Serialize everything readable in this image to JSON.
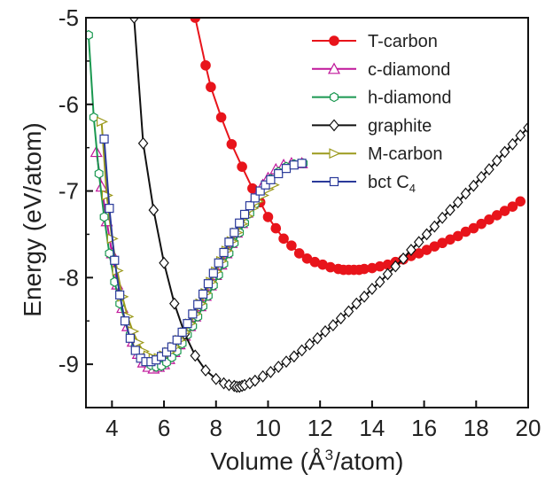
{
  "chart_data": {
    "type": "line",
    "xlabel_prefix": "Volume (Å",
    "xlabel_sup": "3",
    "xlabel_suffix": "/atom)",
    "ylabel": "Energy  (eV/atom)",
    "xlim": [
      3,
      20
    ],
    "ylim": [
      -9.5,
      -5
    ],
    "xticks": [
      4,
      6,
      8,
      10,
      12,
      14,
      16,
      18,
      20
    ],
    "yticks": [
      -9,
      -8,
      -7,
      -6,
      -5
    ],
    "grid": false,
    "legend_placement": "top-right",
    "series": [
      {
        "name": "T-carbon",
        "color": "#e8141b",
        "marker": "circle-filled",
        "x": [
          7.2,
          7.6,
          7.8,
          8.2,
          8.6,
          9.0,
          9.4,
          9.7,
          10.0,
          10.3,
          10.6,
          10.9,
          11.2,
          11.5,
          11.8,
          12.1,
          12.4,
          12.7,
          12.9,
          13.1,
          13.3,
          13.5,
          13.7,
          14.0,
          14.3,
          14.6,
          14.9,
          15.2,
          15.5,
          15.8,
          16.1,
          16.4,
          16.7,
          17.0,
          17.3,
          17.6,
          17.9,
          18.2,
          18.5,
          18.8,
          19.1,
          19.4,
          19.7
        ],
        "y": [
          -5.0,
          -5.55,
          -5.8,
          -6.15,
          -6.46,
          -6.72,
          -6.97,
          -7.13,
          -7.3,
          -7.43,
          -7.55,
          -7.63,
          -7.72,
          -7.78,
          -7.82,
          -7.85,
          -7.88,
          -7.9,
          -7.91,
          -7.91,
          -7.91,
          -7.91,
          -7.9,
          -7.89,
          -7.87,
          -7.85,
          -7.82,
          -7.79,
          -7.75,
          -7.72,
          -7.68,
          -7.64,
          -7.6,
          -7.56,
          -7.52,
          -7.47,
          -7.43,
          -7.38,
          -7.33,
          -7.28,
          -7.23,
          -7.18,
          -7.12
        ]
      },
      {
        "name": "c-diamond",
        "color": "#c0169a",
        "marker": "triangle-open",
        "x": [
          3.4,
          3.6,
          3.8,
          4.0,
          4.2,
          4.4,
          4.6,
          4.8,
          5.0,
          5.2,
          5.4,
          5.6,
          5.8,
          6.0,
          6.2,
          6.4,
          6.6,
          6.8,
          7.0,
          7.2,
          7.4,
          7.6,
          7.8,
          8.0,
          8.2,
          8.4,
          8.6,
          8.8,
          9.0,
          9.2,
          9.4,
          9.6,
          9.8,
          10.0,
          10.3,
          10.6,
          10.9,
          11.3
        ],
        "y": [
          -6.55,
          -6.95,
          -7.35,
          -7.72,
          -8.08,
          -8.35,
          -8.56,
          -8.74,
          -8.88,
          -8.98,
          -9.03,
          -9.05,
          -9.03,
          -9.0,
          -8.94,
          -8.86,
          -8.77,
          -8.67,
          -8.56,
          -8.45,
          -8.33,
          -8.21,
          -8.09,
          -7.97,
          -7.85,
          -7.72,
          -7.6,
          -7.48,
          -7.37,
          -7.25,
          -7.14,
          -7.03,
          -6.93,
          -6.85,
          -6.75,
          -6.7,
          -6.68,
          -6.68
        ]
      },
      {
        "name": "h-diamond",
        "color": "#1a9850",
        "marker": "hexagon-open",
        "x": [
          3.1,
          3.3,
          3.5,
          3.7,
          3.9,
          4.1,
          4.3,
          4.5,
          4.7,
          4.9,
          5.1,
          5.3,
          5.5,
          5.7,
          5.9,
          6.1,
          6.3,
          6.5,
          6.7,
          6.9,
          7.1,
          7.3,
          7.5,
          7.7,
          7.9,
          8.1,
          8.3,
          8.5,
          8.7,
          8.9,
          9.1,
          9.3,
          9.5,
          9.7,
          9.9,
          10.1,
          10.4,
          10.7,
          11.0,
          11.35
        ],
        "y": [
          -5.2,
          -6.15,
          -6.8,
          -7.3,
          -7.72,
          -8.05,
          -8.3,
          -8.5,
          -8.66,
          -8.8,
          -8.9,
          -8.97,
          -9.01,
          -9.03,
          -9.02,
          -8.98,
          -8.92,
          -8.85,
          -8.76,
          -8.66,
          -8.56,
          -8.45,
          -8.33,
          -8.21,
          -8.09,
          -7.97,
          -7.84,
          -7.72,
          -7.6,
          -7.48,
          -7.37,
          -7.26,
          -7.15,
          -7.04,
          -6.94,
          -6.86,
          -6.78,
          -6.72,
          -6.69,
          -6.68
        ]
      },
      {
        "name": "graphite",
        "color": "#111111",
        "marker": "diamond-open",
        "x": [
          4.85,
          5.2,
          5.6,
          6.0,
          6.4,
          6.8,
          7.2,
          7.6,
          8.0,
          8.3,
          8.5,
          8.7,
          8.8,
          8.9,
          9.0,
          9.1,
          9.3,
          9.5,
          9.8,
          10.1,
          10.4,
          10.7,
          11.0,
          11.3,
          11.6,
          11.9,
          12.2,
          12.5,
          12.8,
          13.1,
          13.4,
          13.7,
          14.0,
          14.3,
          14.6,
          14.9,
          15.2,
          15.5,
          15.8,
          16.1,
          16.4,
          16.7,
          17.0,
          17.3,
          17.6,
          17.9,
          18.2,
          18.5,
          18.8,
          19.1,
          19.4,
          19.7,
          20.0
        ],
        "y": [
          -5.0,
          -6.45,
          -7.22,
          -7.83,
          -8.3,
          -8.65,
          -8.9,
          -9.07,
          -9.17,
          -9.22,
          -9.24,
          -9.25,
          -9.26,
          -9.26,
          -9.25,
          -9.24,
          -9.22,
          -9.19,
          -9.14,
          -9.09,
          -9.03,
          -8.97,
          -8.91,
          -8.84,
          -8.77,
          -8.7,
          -8.62,
          -8.55,
          -8.47,
          -8.39,
          -8.3,
          -8.22,
          -8.13,
          -8.05,
          -7.96,
          -7.87,
          -7.78,
          -7.68,
          -7.59,
          -7.5,
          -7.41,
          -7.31,
          -7.22,
          -7.13,
          -7.03,
          -6.94,
          -6.84,
          -6.75,
          -6.65,
          -6.55,
          -6.46,
          -6.36,
          -6.27
        ]
      },
      {
        "name": "M-carbon",
        "color": "#9c9a1d",
        "marker": "triangle-right-open",
        "x": [
          3.6,
          3.8,
          4.0,
          4.2,
          4.4,
          4.6,
          4.8,
          5.0,
          5.2,
          5.4,
          5.6,
          5.8,
          6.0,
          6.2,
          6.4,
          6.6,
          6.8,
          7.0,
          7.2,
          7.4,
          7.6,
          7.8,
          8.0,
          8.2,
          8.4,
          8.6,
          8.8,
          9.0,
          9.2,
          9.4,
          9.6,
          9.8,
          10.0,
          10.2
        ],
        "y": [
          -6.2,
          -7.05,
          -7.55,
          -7.92,
          -8.22,
          -8.45,
          -8.62,
          -8.75,
          -8.85,
          -8.9,
          -8.93,
          -8.93,
          -8.9,
          -8.86,
          -8.8,
          -8.72,
          -8.63,
          -8.53,
          -8.42,
          -8.3,
          -8.18,
          -8.05,
          -7.93,
          -7.81,
          -7.69,
          -7.58,
          -7.48,
          -7.38,
          -7.29,
          -7.2,
          -7.12,
          -7.05,
          -6.98,
          -6.93
        ]
      },
      {
        "name": "bct C",
        "name_sub": "4",
        "color": "#2a3a9a",
        "marker": "square-open",
        "x": [
          3.7,
          3.9,
          4.1,
          4.3,
          4.5,
          4.7,
          4.9,
          5.1,
          5.3,
          5.5,
          5.7,
          5.9,
          6.1,
          6.3,
          6.5,
          6.7,
          6.9,
          7.1,
          7.3,
          7.5,
          7.7,
          7.9,
          8.1,
          8.3,
          8.5,
          8.7,
          8.9,
          9.1,
          9.3,
          9.5,
          9.7,
          9.9,
          10.1,
          10.4,
          10.7,
          11.0,
          11.3
        ],
        "y": [
          -6.4,
          -7.2,
          -7.8,
          -8.2,
          -8.5,
          -8.7,
          -8.84,
          -8.93,
          -8.97,
          -8.97,
          -8.95,
          -8.91,
          -8.86,
          -8.8,
          -8.72,
          -8.63,
          -8.53,
          -8.42,
          -8.31,
          -8.19,
          -8.07,
          -7.95,
          -7.83,
          -7.71,
          -7.59,
          -7.48,
          -7.37,
          -7.27,
          -7.17,
          -7.08,
          -7.0,
          -6.93,
          -6.87,
          -6.8,
          -6.74,
          -6.7,
          -6.68
        ]
      }
    ]
  }
}
